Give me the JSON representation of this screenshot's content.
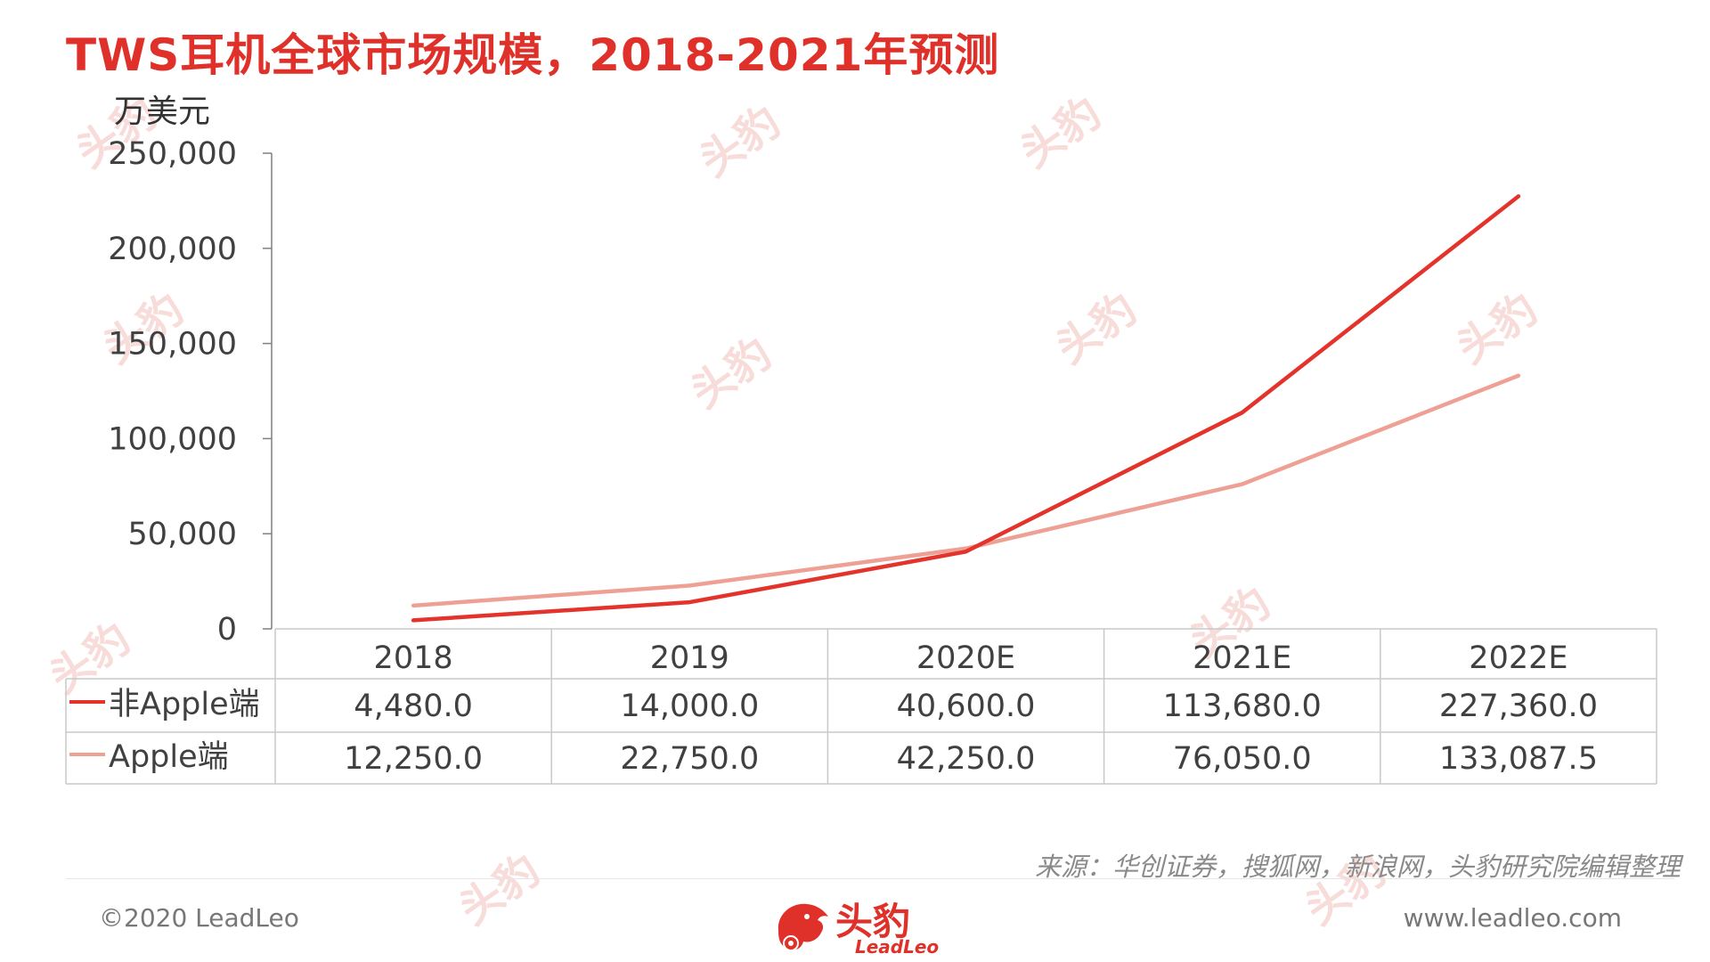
{
  "page": {
    "title": "TWS耳机全球市场规模，2018-2021年预测",
    "unit": "万美元",
    "source": "来源：华创证券，搜狐网，新浪网，头豹研究院编辑整理",
    "copyright": "©2020 LeadLeo",
    "website": "www.leadleo.com",
    "logo_cn": "头豹",
    "logo_en": "LeadLeo"
  },
  "chart_data": {
    "type": "line",
    "title": "TWS耳机全球市场规模，2018-2021年预测",
    "ylabel": "万美元",
    "ylim": [
      0,
      250000
    ],
    "yticks": [
      "0",
      "50,000",
      "100,000",
      "150,000",
      "200,000",
      "250,000"
    ],
    "categories": [
      "2018",
      "2019",
      "2020E",
      "2021E",
      "2022E"
    ],
    "series": [
      {
        "name": "非Apple端",
        "color": "#e3332b",
        "values": [
          4480,
          14000,
          40600,
          113680,
          227360
        ],
        "labels": [
          "4,480.0",
          "14,000.0",
          "40,600.0",
          "113,680.0",
          "227,360.0"
        ]
      },
      {
        "name": "Apple端",
        "color": "#eea095",
        "values": [
          12250,
          22750,
          42250,
          76050,
          133087.5
        ],
        "labels": [
          "12,250.0",
          "22,750.0",
          "42,250.0",
          "76,050.0",
          "133,087.5"
        ]
      }
    ],
    "grid": false,
    "legend": "data-table"
  }
}
